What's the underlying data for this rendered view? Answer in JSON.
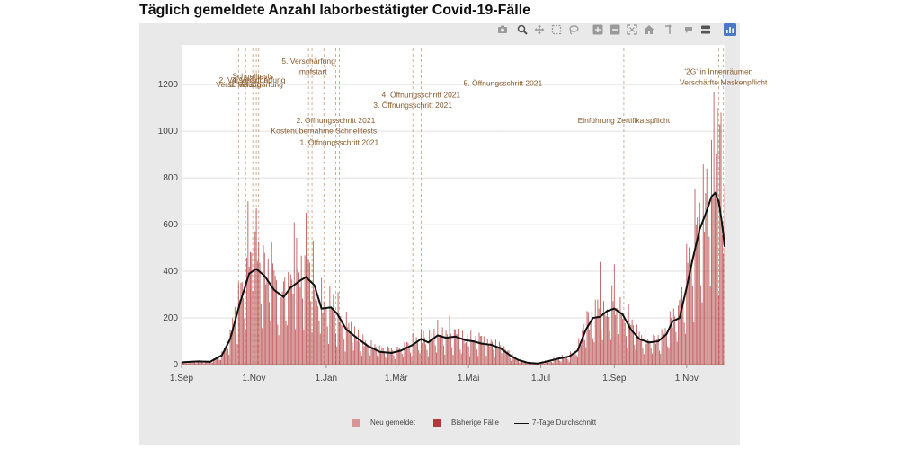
{
  "colors": {
    "neu": "#d79696",
    "bisherige": "#b03a3a",
    "avg_line": "#111111",
    "event_line": "#c89a78",
    "event_text": "#8b5a2b",
    "grid": "#e0e0e0",
    "axis_text": "#444444",
    "plot_bg": "#ffffff",
    "panel_bg": "#e9e9e9",
    "modebar_active": "#4a78c8"
  },
  "toolbar": {
    "icons": [
      "camera-icon",
      "zoom-icon",
      "pan-icon",
      "box-select-icon",
      "lasso-select-icon",
      "zoom-in-icon",
      "zoom-out-icon",
      "autoscale-icon",
      "reset-axes-icon",
      "spike-lines-icon",
      "hover-closest-icon",
      "hover-compare-icon",
      "plotly-logo-icon"
    ]
  },
  "chart_data": {
    "type": "bar",
    "title": "Täglich gemeldete Anzahl laborbestätigter Covid-19-Fälle",
    "xlabel": "",
    "ylabel": "",
    "ylim": [
      0,
      1370
    ],
    "yticks": [
      0,
      200,
      400,
      600,
      800,
      1000,
      1200
    ],
    "x_start": "2020-09-01",
    "x_end": "2021-12-03",
    "xticks": [
      {
        "date": "2020-09-01",
        "label": "1.Sep"
      },
      {
        "date": "2020-11-01",
        "label": "1.Nov"
      },
      {
        "date": "2021-01-01",
        "label": "1.Jan"
      },
      {
        "date": "2021-03-01",
        "label": "1.Mär"
      },
      {
        "date": "2021-05-01",
        "label": "1.Mai"
      },
      {
        "date": "2021-07-01",
        "label": "1.Jul"
      },
      {
        "date": "2021-09-01",
        "label": "1.Sep"
      },
      {
        "date": "2021-11-01",
        "label": "1.Nov"
      }
    ],
    "series": [
      {
        "name": "Neu gemeldet",
        "kind": "bar",
        "note": "newly reported cases, last day only"
      },
      {
        "name": "Bisherige Fälle",
        "kind": "bar",
        "note": "previously reported daily cases"
      },
      {
        "name": "7-Tage Durchschnitt",
        "kind": "line",
        "knots": [
          [
            "2020-09-01",
            10
          ],
          [
            "2020-09-15",
            14
          ],
          [
            "2020-09-25",
            12
          ],
          [
            "2020-10-05",
            40
          ],
          [
            "2020-10-12",
            110
          ],
          [
            "2020-10-20",
            260
          ],
          [
            "2020-10-28",
            390
          ],
          [
            "2020-11-03",
            410
          ],
          [
            "2020-11-10",
            380
          ],
          [
            "2020-11-18",
            320
          ],
          [
            "2020-11-26",
            290
          ],
          [
            "2020-12-02",
            330
          ],
          [
            "2020-12-10",
            360
          ],
          [
            "2020-12-15",
            375
          ],
          [
            "2020-12-22",
            340
          ],
          [
            "2020-12-28",
            240
          ],
          [
            "2021-01-05",
            245
          ],
          [
            "2021-01-10",
            220
          ],
          [
            "2021-01-18",
            150
          ],
          [
            "2021-01-28",
            110
          ],
          [
            "2021-02-05",
            80
          ],
          [
            "2021-02-15",
            55
          ],
          [
            "2021-02-25",
            50
          ],
          [
            "2021-03-05",
            60
          ],
          [
            "2021-03-15",
            85
          ],
          [
            "2021-03-22",
            110
          ],
          [
            "2021-03-28",
            95
          ],
          [
            "2021-04-05",
            125
          ],
          [
            "2021-04-12",
            115
          ],
          [
            "2021-04-20",
            120
          ],
          [
            "2021-04-28",
            105
          ],
          [
            "2021-05-05",
            100
          ],
          [
            "2021-05-12",
            90
          ],
          [
            "2021-05-20",
            85
          ],
          [
            "2021-05-28",
            70
          ],
          [
            "2021-06-05",
            40
          ],
          [
            "2021-06-12",
            20
          ],
          [
            "2021-06-20",
            8
          ],
          [
            "2021-06-28",
            5
          ],
          [
            "2021-07-05",
            12
          ],
          [
            "2021-07-15",
            25
          ],
          [
            "2021-07-25",
            35
          ],
          [
            "2021-08-01",
            60
          ],
          [
            "2021-08-08",
            150
          ],
          [
            "2021-08-14",
            200
          ],
          [
            "2021-08-20",
            205
          ],
          [
            "2021-08-26",
            230
          ],
          [
            "2021-09-01",
            240
          ],
          [
            "2021-09-08",
            215
          ],
          [
            "2021-09-15",
            150
          ],
          [
            "2021-09-22",
            110
          ],
          [
            "2021-09-30",
            95
          ],
          [
            "2021-10-08",
            100
          ],
          [
            "2021-10-15",
            130
          ],
          [
            "2021-10-20",
            185
          ],
          [
            "2021-10-26",
            200
          ],
          [
            "2021-11-01",
            330
          ],
          [
            "2021-11-06",
            450
          ],
          [
            "2021-11-12",
            580
          ],
          [
            "2021-11-18",
            660
          ],
          [
            "2021-11-22",
            720
          ],
          [
            "2021-11-25",
            735
          ],
          [
            "2021-11-28",
            700
          ],
          [
            "2021-12-01",
            600
          ],
          [
            "2021-12-03",
            505
          ]
        ]
      }
    ],
    "peaks": [
      [
        "2020-10-27",
        700
      ],
      [
        "2020-11-03",
        670
      ],
      [
        "2020-12-15",
        650
      ],
      [
        "2020-12-05",
        610
      ],
      [
        "2021-11-24",
        1170
      ],
      [
        "2021-11-27",
        1100
      ],
      [
        "2021-11-30",
        1080
      ],
      [
        "2021-11-18",
        840
      ],
      [
        "2021-08-20",
        440
      ],
      [
        "2021-09-01",
        430
      ],
      [
        "2021-04-15",
        210
      ]
    ],
    "last_day_neu": 770,
    "events": [
      {
        "date": "2020-10-19",
        "label": "Verschärfung",
        "label_y": 1189
      },
      {
        "date": "2020-10-25",
        "label": "2. Verschärfung",
        "label_y": 1208
      },
      {
        "date": "2020-10-31",
        "label": "Schnelltests",
        "label_y": 1226
      },
      {
        "date": "2020-11-03",
        "label": "3. Verschärfung",
        "label_y": 1189
      },
      {
        "date": "2020-11-05",
        "label": "4. Verschärfung",
        "label_y": 1208
      },
      {
        "date": "2020-12-20",
        "label": "Impfstart",
        "label_y": 1245
      },
      {
        "date": "2020-12-17",
        "label": "5. Verschärfung",
        "label_y": 1290
      },
      {
        "date": "2020-12-30",
        "label": "Kostenübernahme Schnelltests",
        "label_y": 990
      },
      {
        "date": "2021-01-09",
        "label": "2. Öffnungsschritt 2021",
        "label_y": 1035
      },
      {
        "date": "2021-01-12",
        "label": "1. Öffnungsschritt 2021",
        "label_y": 940
      },
      {
        "date": "2021-03-15",
        "label": "3. Öffnungsschritt 2021",
        "label_y": 1100
      },
      {
        "date": "2021-03-22",
        "label": "4. Öffnungsschritt 2021",
        "label_y": 1145
      },
      {
        "date": "2021-05-30",
        "label": "5. Öffnungsschritt 2021",
        "label_y": 1195
      },
      {
        "date": "2021-09-09",
        "label": "Einführung Zertifikatspflicht",
        "label_y": 1035
      },
      {
        "date": "2021-11-28",
        "label": "'2G' in Innenräumen",
        "label_y": 1245
      },
      {
        "date": "2021-12-02",
        "label": "Verschärfte Maskenpflicht",
        "label_y": 1199
      }
    ]
  },
  "legend": {
    "neu": "Neu gemeldet",
    "bisherige": "Bisherige Fälle",
    "avg": "7-Tage Durchschnitt"
  }
}
